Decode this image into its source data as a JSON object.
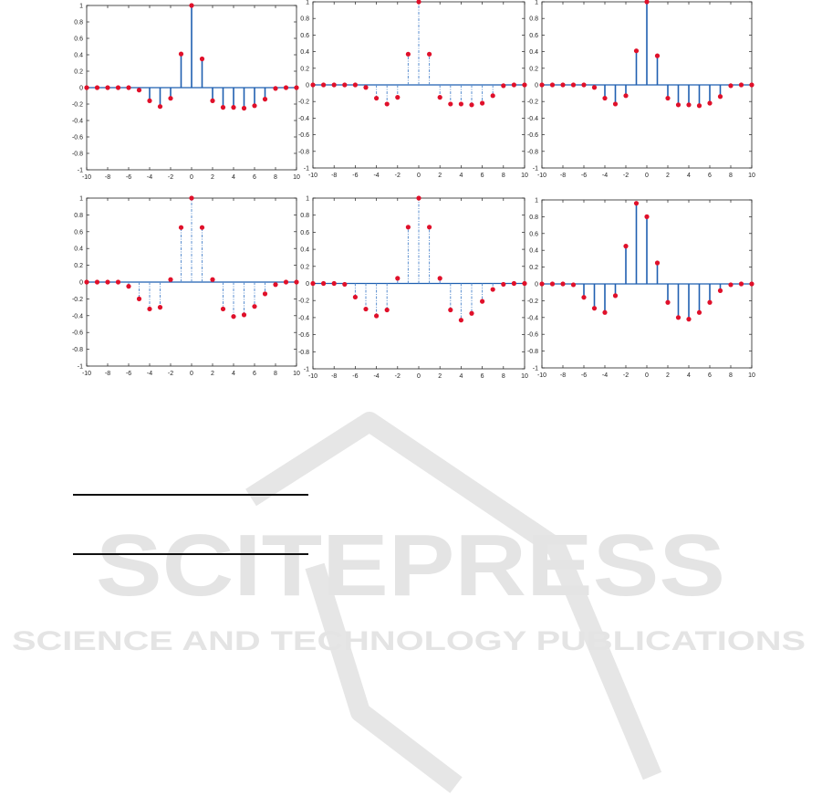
{
  "colors": {
    "stem_solid": "#1f5fb0",
    "stem_dashed": "#5b8fd0",
    "marker": "#e0102a",
    "axis": "#222222",
    "watermark": "#e4e4e4"
  },
  "watermark": {
    "main": "SCITEPRESS",
    "sub": "SCIENCE AND TECHNOLOGY PUBLICATIONS"
  },
  "chart_data": [
    {
      "type": "stem",
      "style": "solid",
      "xlim": [
        -10,
        10
      ],
      "ylim": [
        -1,
        1
      ],
      "xticks": [
        "-10",
        "-8",
        "-6",
        "-4",
        "-2",
        "0",
        "2",
        "4",
        "6",
        "8",
        "10"
      ],
      "yticks": [
        "1",
        "0.8",
        "0.6",
        "0.4",
        "0.2",
        "0",
        "-0.2",
        "-0.4",
        "-0.6",
        "-0.8",
        "-1"
      ],
      "x": [
        -10,
        -9,
        -8,
        -7,
        -6,
        -5,
        -4,
        -3,
        -2,
        -1,
        0,
        1,
        2,
        3,
        4,
        5,
        6,
        7,
        8,
        9,
        10
      ],
      "values": [
        0,
        0,
        0,
        0,
        0,
        -0.03,
        -0.16,
        -0.23,
        -0.13,
        0.41,
        1.0,
        0.35,
        -0.16,
        -0.24,
        -0.24,
        -0.25,
        -0.22,
        -0.14,
        -0.01,
        0,
        0
      ]
    },
    {
      "type": "stem",
      "style": "dashed",
      "xlim": [
        -10,
        10
      ],
      "ylim": [
        -1,
        1
      ],
      "xticks": [
        "-10",
        "-8",
        "-6",
        "-4",
        "-2",
        "0",
        "2",
        "4",
        "6",
        "8",
        "10"
      ],
      "yticks": [
        "1",
        "0.8",
        "0.6",
        "0.4",
        "0.2",
        "0",
        "-0.2",
        "-0.4",
        "-0.6",
        "-0.8",
        "-1"
      ],
      "x": [
        -10,
        -9,
        -8,
        -7,
        -6,
        -5,
        -4,
        -3,
        -2,
        -1,
        0,
        1,
        2,
        3,
        4,
        5,
        6,
        7,
        8,
        9,
        10
      ],
      "values": [
        0,
        0,
        0,
        0,
        0,
        -0.03,
        -0.16,
        -0.23,
        -0.15,
        0.37,
        1.0,
        0.37,
        -0.15,
        -0.23,
        -0.23,
        -0.24,
        -0.22,
        -0.13,
        -0.01,
        0,
        0
      ]
    },
    {
      "type": "stem",
      "style": "solid",
      "xlim": [
        -10,
        10
      ],
      "ylim": [
        -1,
        1
      ],
      "xticks": [
        "-10",
        "-8",
        "-6",
        "-4",
        "-2",
        "0",
        "2",
        "4",
        "6",
        "8",
        "10"
      ],
      "yticks": [
        "1",
        "0.8",
        "0.6",
        "0.4",
        "0.2",
        "0",
        "-0.2",
        "-0.4",
        "-0.6",
        "-0.8",
        "-1"
      ],
      "x": [
        -10,
        -9,
        -8,
        -7,
        -6,
        -5,
        -4,
        -3,
        -2,
        -1,
        0,
        1,
        2,
        3,
        4,
        5,
        6,
        7,
        8,
        9,
        10
      ],
      "values": [
        0,
        0,
        0,
        0,
        0,
        -0.03,
        -0.16,
        -0.23,
        -0.13,
        0.41,
        1.0,
        0.35,
        -0.16,
        -0.24,
        -0.24,
        -0.25,
        -0.22,
        -0.14,
        -0.01,
        0,
        0
      ]
    },
    {
      "type": "stem",
      "style": "dashed",
      "xlim": [
        -10,
        10
      ],
      "ylim": [
        -1,
        1
      ],
      "xticks": [
        "-10",
        "-8",
        "-6",
        "-4",
        "-2",
        "0",
        "2",
        "4",
        "6",
        "8",
        "10"
      ],
      "yticks": [
        "1",
        "0.8",
        "0.6",
        "0.4",
        "0.2",
        "0",
        "-0.2",
        "-0.4",
        "-0.6",
        "-0.8",
        "-1"
      ],
      "x": [
        -10,
        -9,
        -8,
        -7,
        -6,
        -5,
        -4,
        -3,
        -2,
        -1,
        0,
        1,
        2,
        3,
        4,
        5,
        6,
        7,
        8,
        9,
        10
      ],
      "values": [
        0,
        0,
        0,
        0,
        -0.05,
        -0.2,
        -0.32,
        -0.3,
        0.03,
        0.65,
        1.0,
        0.65,
        0.03,
        -0.32,
        -0.41,
        -0.39,
        -0.29,
        -0.14,
        -0.03,
        0,
        0
      ]
    },
    {
      "type": "stem",
      "style": "dashed",
      "xlim": [
        -10,
        10
      ],
      "ylim": [
        -1,
        1
      ],
      "xticks": [
        "-10",
        "-8",
        "-6",
        "-4",
        "-2",
        "0",
        "2",
        "4",
        "6",
        "8",
        "10"
      ],
      "yticks": [
        "1",
        "0.8",
        "0.6",
        "0.4",
        "0.2",
        "0",
        "-0.2",
        "-0.4",
        "-0.6",
        "-0.8",
        "-1"
      ],
      "x": [
        -10,
        -9,
        -8,
        -7,
        -6,
        -5,
        -4,
        -3,
        -2,
        -1,
        0,
        1,
        2,
        3,
        4,
        5,
        6,
        7,
        8,
        9,
        10
      ],
      "values": [
        0,
        0,
        0,
        -0.01,
        -0.16,
        -0.3,
        -0.38,
        -0.31,
        0.06,
        0.66,
        1.0,
        0.66,
        0.06,
        -0.31,
        -0.43,
        -0.35,
        -0.21,
        -0.07,
        -0.01,
        0,
        0
      ]
    },
    {
      "type": "stem",
      "style": "solid",
      "xlim": [
        -10,
        10
      ],
      "ylim": [
        -1,
        1
      ],
      "xticks": [
        "-10",
        "-8",
        "-6",
        "-4",
        "-2",
        "0",
        "2",
        "4",
        "6",
        "8",
        "10"
      ],
      "yticks": [
        "1",
        "0.8",
        "0.6",
        "0.4",
        "0.2",
        "0",
        "-0.2",
        "-0.4",
        "-0.6",
        "-0.8",
        "-1"
      ],
      "x": [
        -10,
        -9,
        -8,
        -7,
        -6,
        -5,
        -4,
        -3,
        -2,
        -1,
        0,
        1,
        2,
        3,
        4,
        5,
        6,
        7,
        8,
        9,
        10
      ],
      "values": [
        0,
        0,
        0,
        -0.01,
        -0.16,
        -0.29,
        -0.34,
        -0.14,
        0.45,
        0.96,
        0.8,
        0.25,
        -0.22,
        -0.4,
        -0.42,
        -0.34,
        -0.22,
        -0.08,
        -0.01,
        0,
        0
      ]
    }
  ]
}
